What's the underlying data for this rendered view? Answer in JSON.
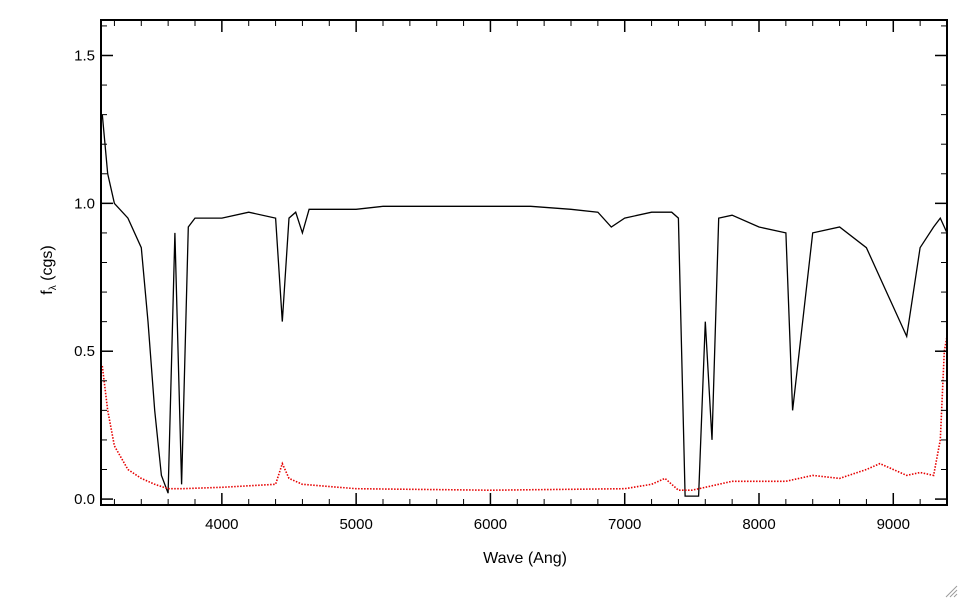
{
  "chart_data": {
    "type": "line",
    "xlabel": "Wave (Ang)",
    "ylabel": "f",
    "ylabel_sub": "λ",
    "ylabel_unit": " (cgs)",
    "xlim": [
      3100,
      9400
    ],
    "ylim": [
      -0.02,
      1.62
    ],
    "xticks": [
      4000,
      5000,
      6000,
      7000,
      8000,
      9000
    ],
    "yticks": [
      0.0,
      0.5,
      1.0,
      1.5
    ],
    "ytick_labels": [
      "0.0",
      "0.5",
      "1.0",
      "1.5"
    ],
    "grid": false,
    "series": [
      {
        "role": "flux",
        "color": "#000000",
        "style": "solid",
        "x": [
          3110,
          3150,
          3200,
          3300,
          3400,
          3450,
          3500,
          3550,
          3600,
          3650,
          3700,
          3750,
          3800,
          4000,
          4200,
          4400,
          4450,
          4500,
          4550,
          4600,
          4650,
          4800,
          5000,
          5200,
          5500,
          5800,
          6000,
          6300,
          6600,
          6800,
          6900,
          7000,
          7200,
          7350,
          7400,
          7450,
          7500,
          7550,
          7600,
          7650,
          7700,
          7800,
          8000,
          8200,
          8250,
          8400,
          8600,
          8800,
          9000,
          9100,
          9200,
          9300,
          9350,
          9400
        ],
        "y": [
          1.3,
          1.1,
          1.0,
          0.95,
          0.85,
          0.6,
          0.3,
          0.08,
          0.02,
          0.9,
          0.05,
          0.92,
          0.95,
          0.95,
          0.97,
          0.95,
          0.6,
          0.95,
          0.97,
          0.9,
          0.98,
          0.98,
          0.98,
          0.99,
          0.99,
          0.99,
          0.99,
          0.99,
          0.98,
          0.97,
          0.92,
          0.95,
          0.97,
          0.97,
          0.95,
          0.01,
          0.01,
          0.01,
          0.6,
          0.2,
          0.95,
          0.96,
          0.92,
          0.9,
          0.3,
          0.9,
          0.92,
          0.85,
          0.65,
          0.55,
          0.85,
          0.92,
          0.95,
          0.9
        ]
      },
      {
        "role": "error",
        "color": "#e60000",
        "style": "dotted",
        "x": [
          3110,
          3150,
          3200,
          3300,
          3400,
          3500,
          3600,
          3700,
          4000,
          4400,
          4450,
          4500,
          4600,
          5000,
          6000,
          7000,
          7200,
          7300,
          7400,
          7500,
          7600,
          7700,
          7800,
          8000,
          8200,
          8400,
          8600,
          8800,
          8900,
          9000,
          9100,
          9200,
          9300,
          9350,
          9380,
          9400
        ],
        "y": [
          0.45,
          0.3,
          0.18,
          0.1,
          0.07,
          0.05,
          0.035,
          0.035,
          0.04,
          0.05,
          0.12,
          0.07,
          0.05,
          0.035,
          0.03,
          0.035,
          0.05,
          0.07,
          0.03,
          0.03,
          0.04,
          0.05,
          0.06,
          0.06,
          0.06,
          0.08,
          0.07,
          0.1,
          0.12,
          0.1,
          0.08,
          0.09,
          0.08,
          0.2,
          0.5,
          0.55
        ]
      }
    ]
  }
}
